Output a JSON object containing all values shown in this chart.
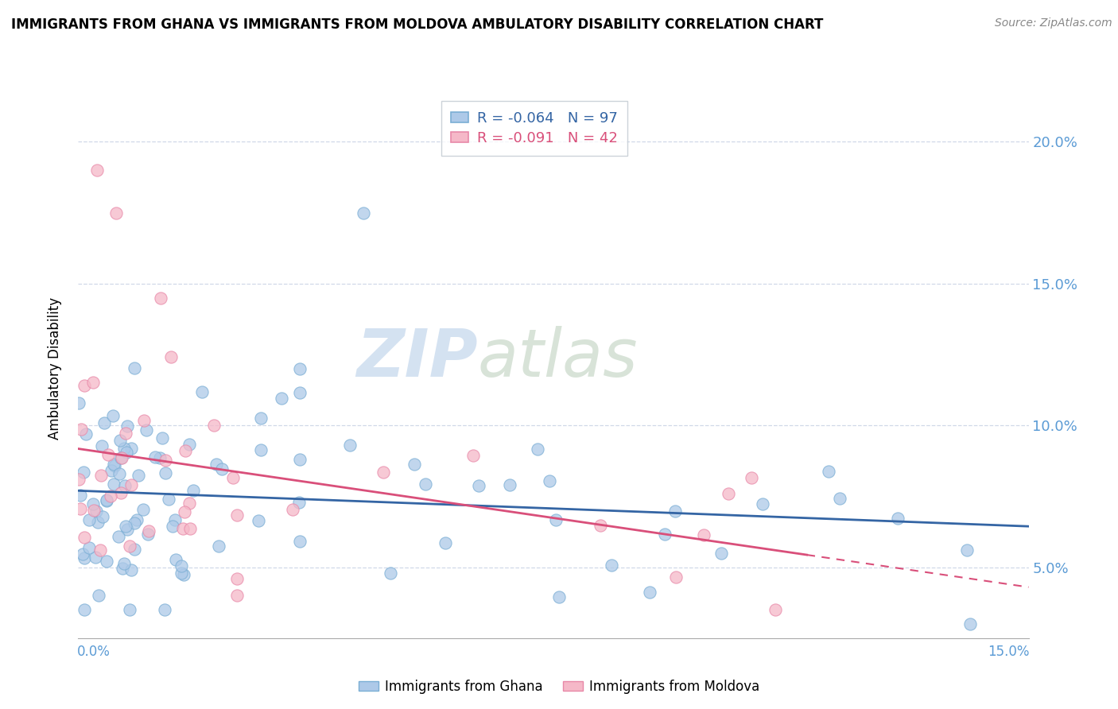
{
  "title": "IMMIGRANTS FROM GHANA VS IMMIGRANTS FROM MOLDOVA AMBULATORY DISABILITY CORRELATION CHART",
  "source": "Source: ZipAtlas.com",
  "ylabel": "Ambulatory Disability",
  "yticks": [
    0.05,
    0.1,
    0.15,
    0.2
  ],
  "ytick_labels": [
    "5.0%",
    "10.0%",
    "15.0%",
    "20.0%"
  ],
  "xlim": [
    0.0,
    0.15
  ],
  "ylim": [
    0.025,
    0.215
  ],
  "ghana_R": -0.064,
  "ghana_N": 97,
  "moldova_R": -0.091,
  "moldova_N": 42,
  "ghana_color": "#adc9e8",
  "ghana_edge_color": "#7aaed4",
  "moldova_color": "#f5b8c8",
  "moldova_edge_color": "#e888a8",
  "ghana_line_color": "#3465a4",
  "moldova_line_color": "#d94f7a",
  "watermark_zip": "ZIP",
  "watermark_atlas": "atlas",
  "watermark_color": "#d0dff0",
  "grid_color": "#d0d8e8",
  "title_color": "#000000",
  "source_color": "#888888",
  "axis_label_color": "#5b9bd5",
  "legend_edge_color": "#c0c8d0"
}
